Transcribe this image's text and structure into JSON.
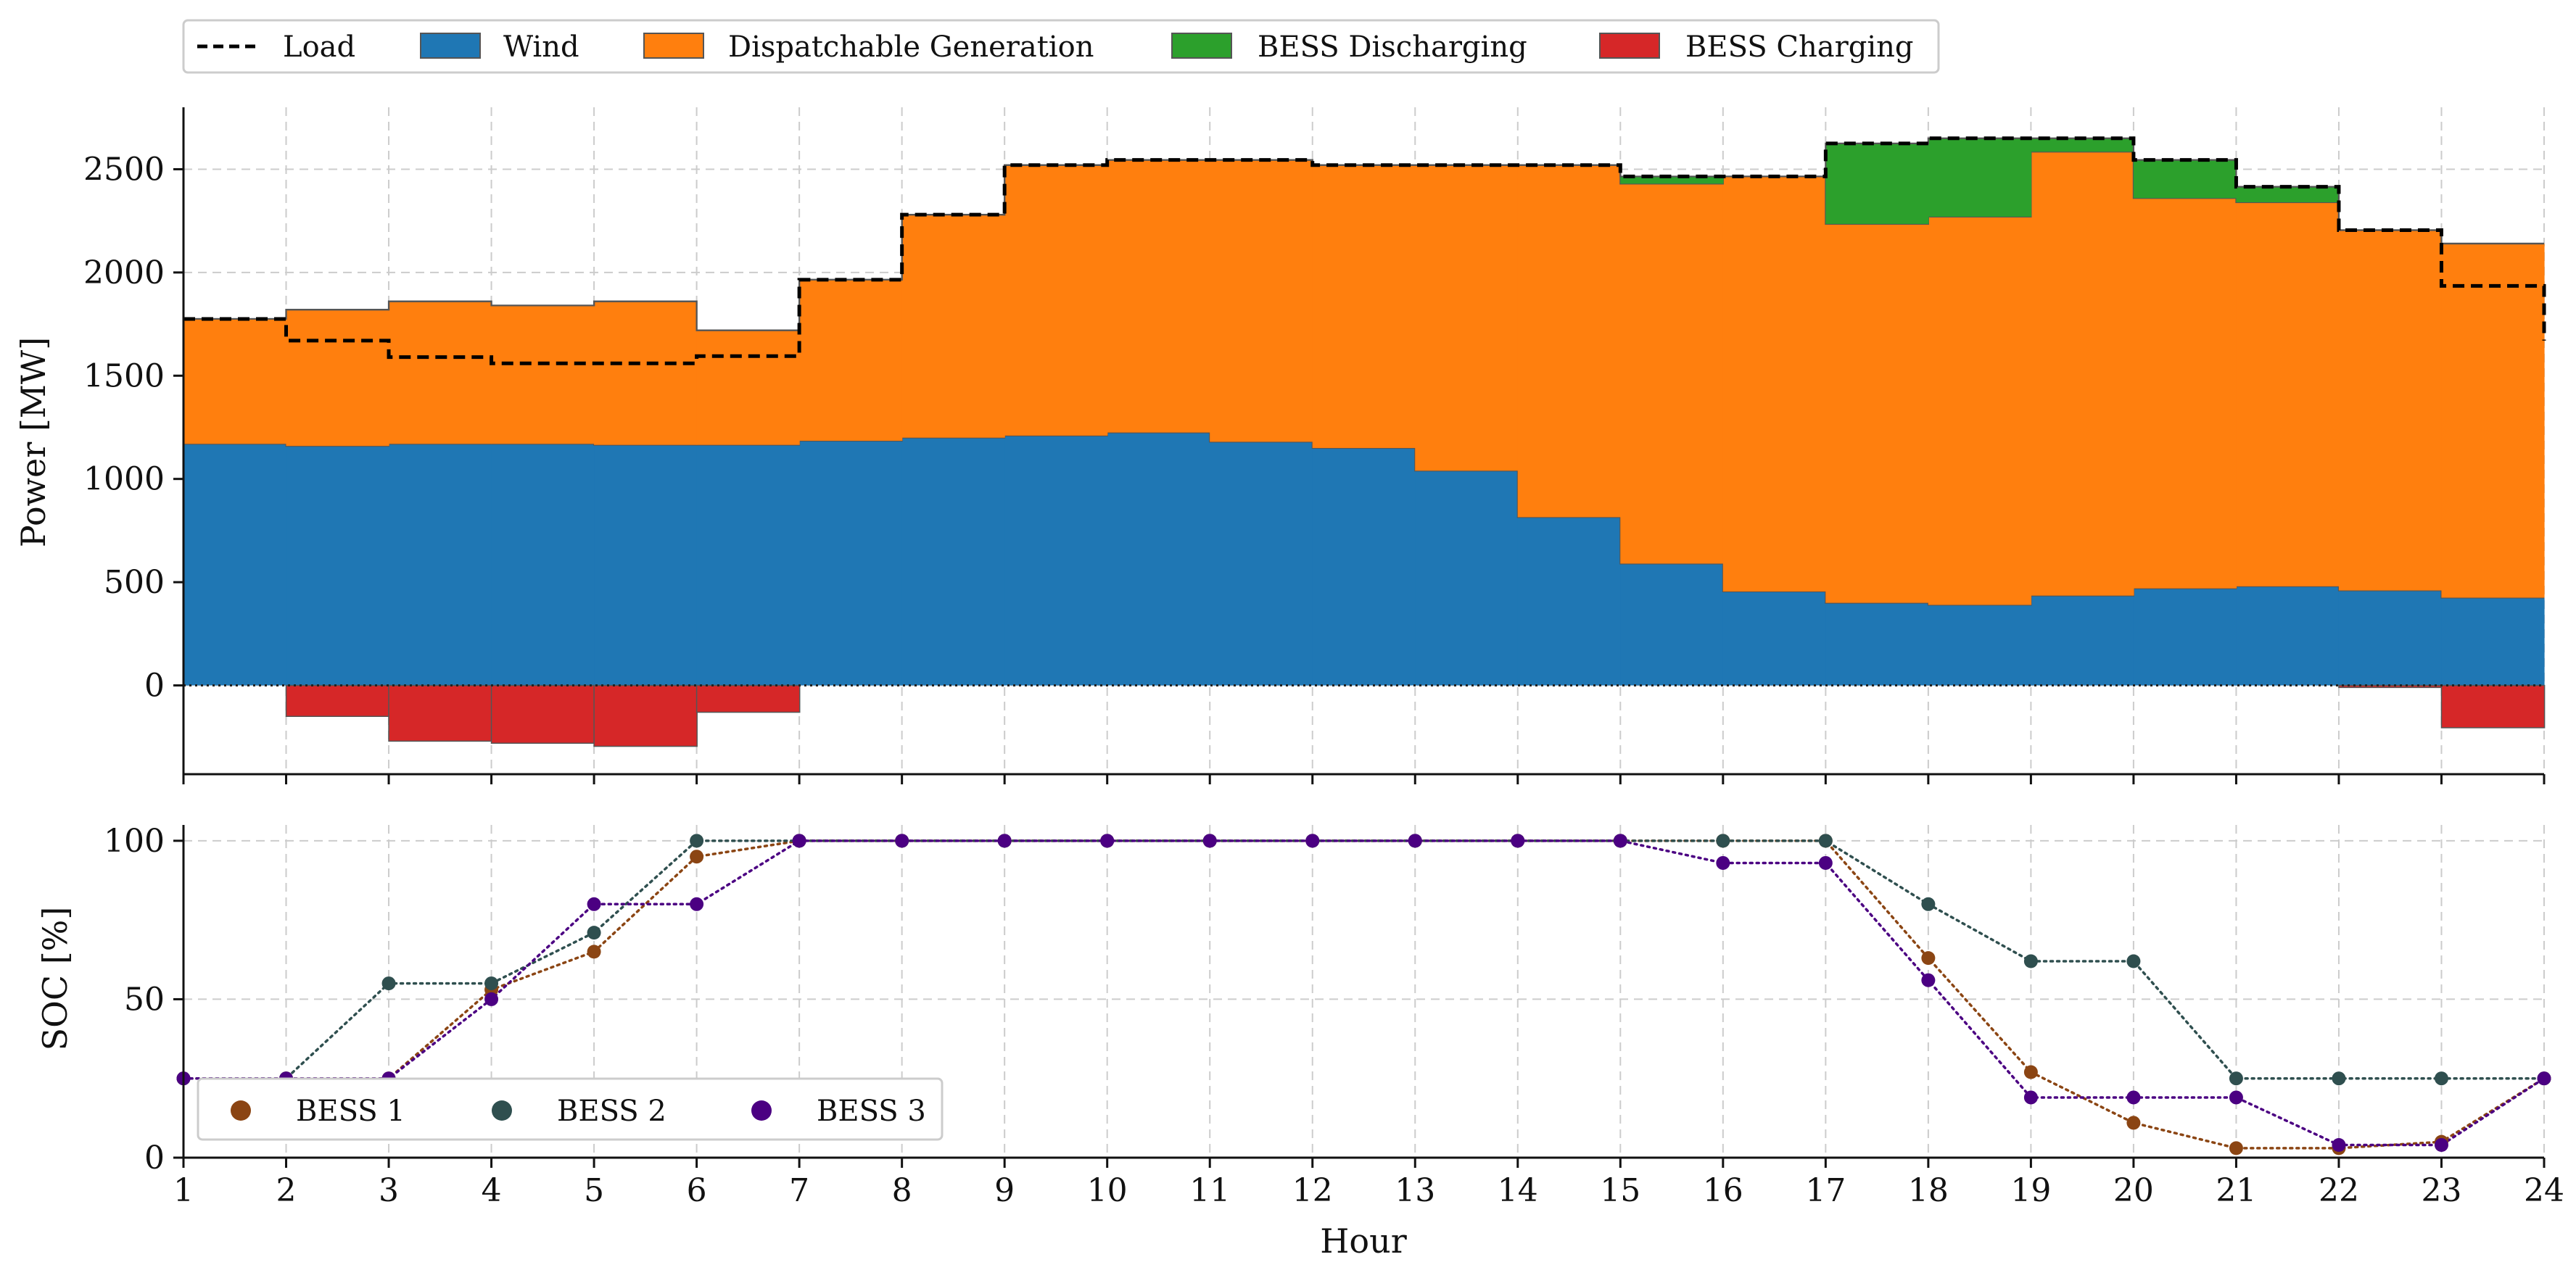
{
  "chart_data": [
    {
      "type": "area",
      "title": "",
      "xlabel": "",
      "ylabel": "Power [MW]",
      "x": [
        1,
        2,
        3,
        4,
        5,
        6,
        7,
        8,
        9,
        10,
        11,
        12,
        13,
        14,
        15,
        16,
        17,
        18,
        19,
        20,
        21,
        22,
        23,
        24
      ],
      "xlim": [
        1,
        24
      ],
      "ylim": [
        -430,
        2800
      ],
      "yticks": [
        0,
        500,
        1000,
        1500,
        2000,
        2500
      ],
      "grid": true,
      "legend_position": "top",
      "legend": [
        "Load",
        "Wind",
        "Dispatchable Generation",
        "BESS Discharging",
        "BESS Charging"
      ],
      "series": [
        {
          "name": "Load",
          "style": "dashed-step",
          "color": "#000000",
          "values": [
            1775,
            1670,
            1590,
            1560,
            1560,
            1595,
            1965,
            2280,
            2520,
            2545,
            2545,
            2520,
            2520,
            2520,
            2465,
            2465,
            2625,
            2650,
            2650,
            2545,
            2415,
            2205,
            1935,
            1670
          ]
        },
        {
          "name": "Wind",
          "style": "stacked-step",
          "color": "#1f77b4",
          "values": [
            1170,
            1160,
            1170,
            1170,
            1165,
            1165,
            1185,
            1200,
            1210,
            1225,
            1180,
            1150,
            1040,
            815,
            590,
            455,
            400,
            390,
            435,
            470,
            480,
            460,
            425,
            425
          ]
        },
        {
          "name": "Dispatchable Generation",
          "style": "stacked-step",
          "color": "#ff7f0e",
          "values": [
            605,
            660,
            690,
            670,
            695,
            555,
            780,
            1080,
            1310,
            1320,
            1365,
            1370,
            1480,
            1705,
            1840,
            2010,
            1835,
            1880,
            2150,
            1890,
            1860,
            1745,
            1715,
            1715
          ]
        },
        {
          "name": "BESS Discharging",
          "style": "stacked-step",
          "color": "#2ca02c",
          "values": [
            0,
            0,
            0,
            0,
            0,
            0,
            0,
            0,
            0,
            0,
            0,
            0,
            0,
            0,
            35,
            0,
            390,
            380,
            65,
            185,
            75,
            0,
            0,
            0
          ]
        },
        {
          "name": "BESS Charging",
          "style": "negative-step",
          "color": "#d62728",
          "values": [
            0,
            -150,
            -270,
            -280,
            -295,
            -130,
            0,
            0,
            0,
            0,
            0,
            0,
            0,
            0,
            0,
            0,
            0,
            0,
            0,
            0,
            0,
            -10,
            -205,
            -205
          ]
        }
      ]
    },
    {
      "type": "line",
      "title": "",
      "xlabel": "Hour",
      "ylabel": "SOC [%]",
      "x": [
        1,
        2,
        3,
        4,
        5,
        6,
        7,
        8,
        9,
        10,
        11,
        12,
        13,
        14,
        15,
        16,
        17,
        18,
        19,
        20,
        21,
        22,
        23,
        24
      ],
      "xlim": [
        1,
        24
      ],
      "ylim": [
        0,
        105
      ],
      "yticks": [
        0,
        50,
        100
      ],
      "xticks": [
        1,
        2,
        3,
        4,
        5,
        6,
        7,
        8,
        9,
        10,
        11,
        12,
        13,
        14,
        15,
        16,
        17,
        18,
        19,
        20,
        21,
        22,
        23,
        24
      ],
      "grid": true,
      "legend_position": "lower-left",
      "legend": [
        "BESS 1",
        "BESS 2",
        "BESS 3"
      ],
      "series": [
        {
          "name": "BESS 1",
          "color": "#8b4513",
          "values": [
            25,
            25,
            25,
            53,
            65,
            95,
            100,
            100,
            100,
            100,
            100,
            100,
            100,
            100,
            100,
            100,
            100,
            63,
            27,
            11,
            3,
            3,
            5,
            25
          ]
        },
        {
          "name": "BESS 2",
          "color": "#2f4f4f",
          "values": [
            25,
            25,
            55,
            55,
            71,
            100,
            100,
            100,
            100,
            100,
            100,
            100,
            100,
            100,
            100,
            100,
            100,
            80,
            62,
            62,
            25,
            25,
            25,
            25
          ]
        },
        {
          "name": "BESS 3",
          "color": "#4b0082",
          "values": [
            25,
            25,
            25,
            50,
            80,
            80,
            100,
            100,
            100,
            100,
            100,
            100,
            100,
            100,
            100,
            93,
            93,
            56,
            19,
            19,
            19,
            4,
            4,
            25
          ]
        }
      ]
    }
  ]
}
